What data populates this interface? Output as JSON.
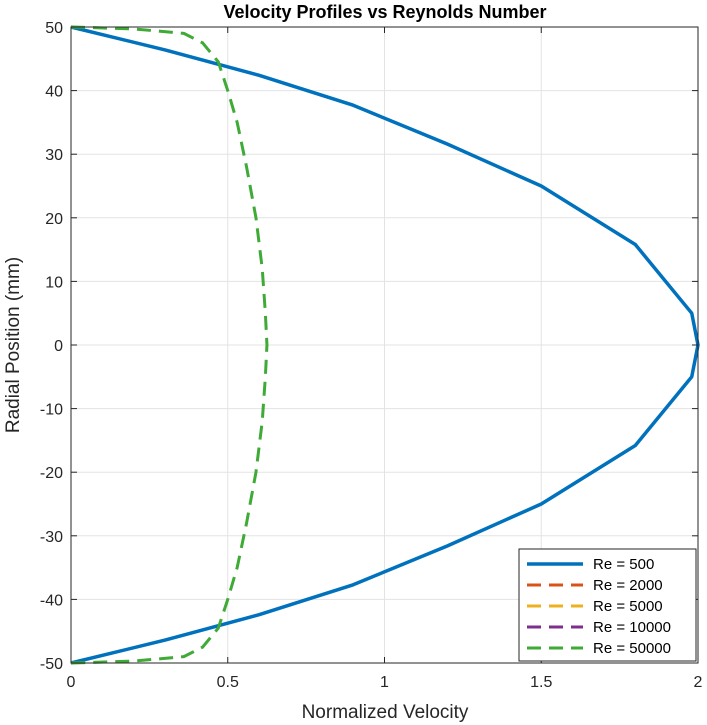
{
  "chart_data": {
    "type": "line",
    "title": "Velocity Profiles vs Reynolds Number",
    "xlabel": "Normalized Velocity",
    "ylabel": "Radial Position (mm)",
    "xlim": [
      0,
      2
    ],
    "ylim": [
      -50,
      50
    ],
    "xticks": [
      0,
      0.5,
      1,
      1.5,
      2
    ],
    "xtick_labels": [
      "0",
      "0.5",
      "1",
      "1.5",
      "2"
    ],
    "yticks": [
      -50,
      -40,
      -30,
      -20,
      -10,
      0,
      10,
      20,
      30,
      40,
      50
    ],
    "ytick_labels": [
      "-50",
      "-40",
      "-30",
      "-20",
      "-10",
      "0",
      "10",
      "20",
      "30",
      "40",
      "50"
    ],
    "grid": true,
    "legend_position": "bottom-right",
    "series": [
      {
        "name": "Re = 500",
        "color": "#0072BD",
        "style": "solid",
        "x": [
          0,
          0.3,
          0.6,
          0.9,
          1.2,
          1.5,
          1.8,
          1.98,
          2.0,
          1.98,
          1.8,
          1.5,
          1.2,
          0.9,
          0.6,
          0.3,
          0
        ],
        "y": [
          50,
          46.4,
          42.4,
          37.7,
          31.6,
          25,
          15.8,
          5,
          0,
          -5,
          -15.8,
          -25,
          -31.6,
          -37.7,
          -42.4,
          -46.4,
          -50
        ]
      },
      {
        "name": "Re = 2000",
        "color": "#D95319",
        "style": "dashed",
        "x": [],
        "y": []
      },
      {
        "name": "Re = 5000",
        "color": "#EDB120",
        "style": "dashed",
        "x": [],
        "y": []
      },
      {
        "name": "Re = 10000",
        "color": "#7E2F8E",
        "style": "dashed",
        "x": [],
        "y": []
      },
      {
        "name": "Re = 50000",
        "color": "#3FAA36",
        "style": "dashed",
        "x": [
          0,
          0.2,
          0.36,
          0.42,
          0.47,
          0.5,
          0.53,
          0.56,
          0.59,
          0.61,
          0.62,
          0.625,
          0.62,
          0.61,
          0.59,
          0.56,
          0.53,
          0.5,
          0.47,
          0.42,
          0.36,
          0.2,
          0
        ],
        "y": [
          50,
          49.7,
          49,
          47.5,
          44.5,
          40,
          35,
          28,
          20,
          12,
          5,
          0,
          -5,
          -12,
          -20,
          -28,
          -35,
          -40,
          -44.5,
          -47.5,
          -49,
          -49.7,
          -50
        ]
      }
    ]
  }
}
